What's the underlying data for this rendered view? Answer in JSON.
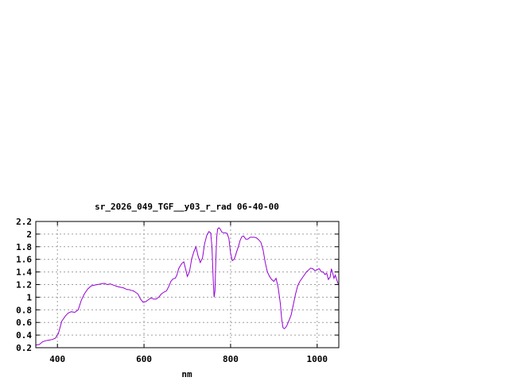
{
  "chart_data": {
    "type": "line",
    "title": "sr_2026_049_TGF__y03_r_rad 06-40-00",
    "xlabel": "nm",
    "ylabel": "",
    "xlim": [
      350,
      1050
    ],
    "ylim": [
      0.2,
      2.2
    ],
    "xticks": [
      400,
      600,
      800,
      1000
    ],
    "xtick_labels": [
      "400",
      "600",
      "800",
      "1000"
    ],
    "yticks": [
      0.2,
      0.4,
      0.6,
      0.8,
      1.0,
      1.2,
      1.4,
      1.6,
      1.8,
      2.0,
      2.2
    ],
    "ytick_labels": [
      "0.2",
      "0.4",
      "0.6",
      "0.8",
      "1",
      "1.2",
      "1.4",
      "1.6",
      "1.8",
      "2",
      "2.2"
    ],
    "grid": true,
    "line_color": "#9400d3",
    "series": [
      {
        "x": [
          350,
          358,
          365,
          372,
          380,
          388,
          395,
          402,
          410,
          418,
          425,
          432,
          440,
          448,
          455,
          462,
          470,
          478,
          485,
          492,
          500,
          508,
          515,
          522,
          530,
          538,
          545,
          552,
          558,
          562,
          566,
          570,
          575,
          580,
          586,
          592,
          598,
          604,
          610,
          616,
          622,
          628,
          634,
          640,
          646,
          652,
          658,
          662,
          667,
          672,
          676,
          680,
          684,
          688,
          692,
          696,
          700,
          705,
          710,
          715,
          720,
          725,
          730,
          735,
          740,
          745,
          750,
          754,
          757,
          760,
          762,
          764,
          766,
          768,
          770,
          773,
          776,
          780,
          784,
          788,
          792,
          796,
          800,
          804,
          808,
          811,
          814,
          818,
          822,
          826,
          830,
          835,
          840,
          845,
          850,
          855,
          860,
          865,
          870,
          875,
          880,
          885,
          890,
          895,
          900,
          905,
          910,
          915,
          918,
          921,
          924,
          927,
          930,
          933,
          936,
          940,
          945,
          950,
          955,
          960,
          965,
          970,
          975,
          980,
          985,
          990,
          995,
          1000,
          1005,
          1010,
          1014,
          1018,
          1022,
          1026,
          1030,
          1033,
          1036,
          1039,
          1042,
          1045,
          1048,
          1050
        ],
        "y": [
          0.24,
          0.25,
          0.29,
          0.31,
          0.32,
          0.33,
          0.35,
          0.42,
          0.62,
          0.7,
          0.75,
          0.77,
          0.76,
          0.8,
          0.95,
          1.05,
          1.13,
          1.18,
          1.19,
          1.2,
          1.21,
          1.22,
          1.2,
          1.21,
          1.19,
          1.17,
          1.16,
          1.15,
          1.13,
          1.12,
          1.12,
          1.11,
          1.1,
          1.08,
          1.05,
          0.97,
          0.92,
          0.93,
          0.96,
          0.99,
          0.97,
          0.97,
          1.0,
          1.05,
          1.08,
          1.1,
          1.18,
          1.25,
          1.29,
          1.3,
          1.35,
          1.45,
          1.5,
          1.54,
          1.56,
          1.45,
          1.33,
          1.4,
          1.6,
          1.72,
          1.8,
          1.65,
          1.55,
          1.62,
          1.85,
          1.98,
          2.04,
          2.02,
          1.8,
          1.25,
          1.0,
          1.1,
          1.6,
          1.95,
          2.08,
          2.1,
          2.08,
          2.03,
          2.02,
          2.02,
          2.01,
          1.93,
          1.7,
          1.58,
          1.6,
          1.65,
          1.72,
          1.8,
          1.9,
          1.96,
          1.97,
          1.92,
          1.92,
          1.95,
          1.95,
          1.95,
          1.94,
          1.91,
          1.87,
          1.75,
          1.55,
          1.4,
          1.33,
          1.28,
          1.25,
          1.3,
          1.15,
          0.9,
          0.65,
          0.52,
          0.5,
          0.52,
          0.55,
          0.6,
          0.65,
          0.72,
          0.88,
          1.05,
          1.18,
          1.25,
          1.3,
          1.35,
          1.4,
          1.43,
          1.46,
          1.45,
          1.42,
          1.44,
          1.45,
          1.4,
          1.4,
          1.36,
          1.38,
          1.28,
          1.32,
          1.45,
          1.38,
          1.3,
          1.35,
          1.28,
          1.22,
          1.21
        ]
      }
    ]
  }
}
